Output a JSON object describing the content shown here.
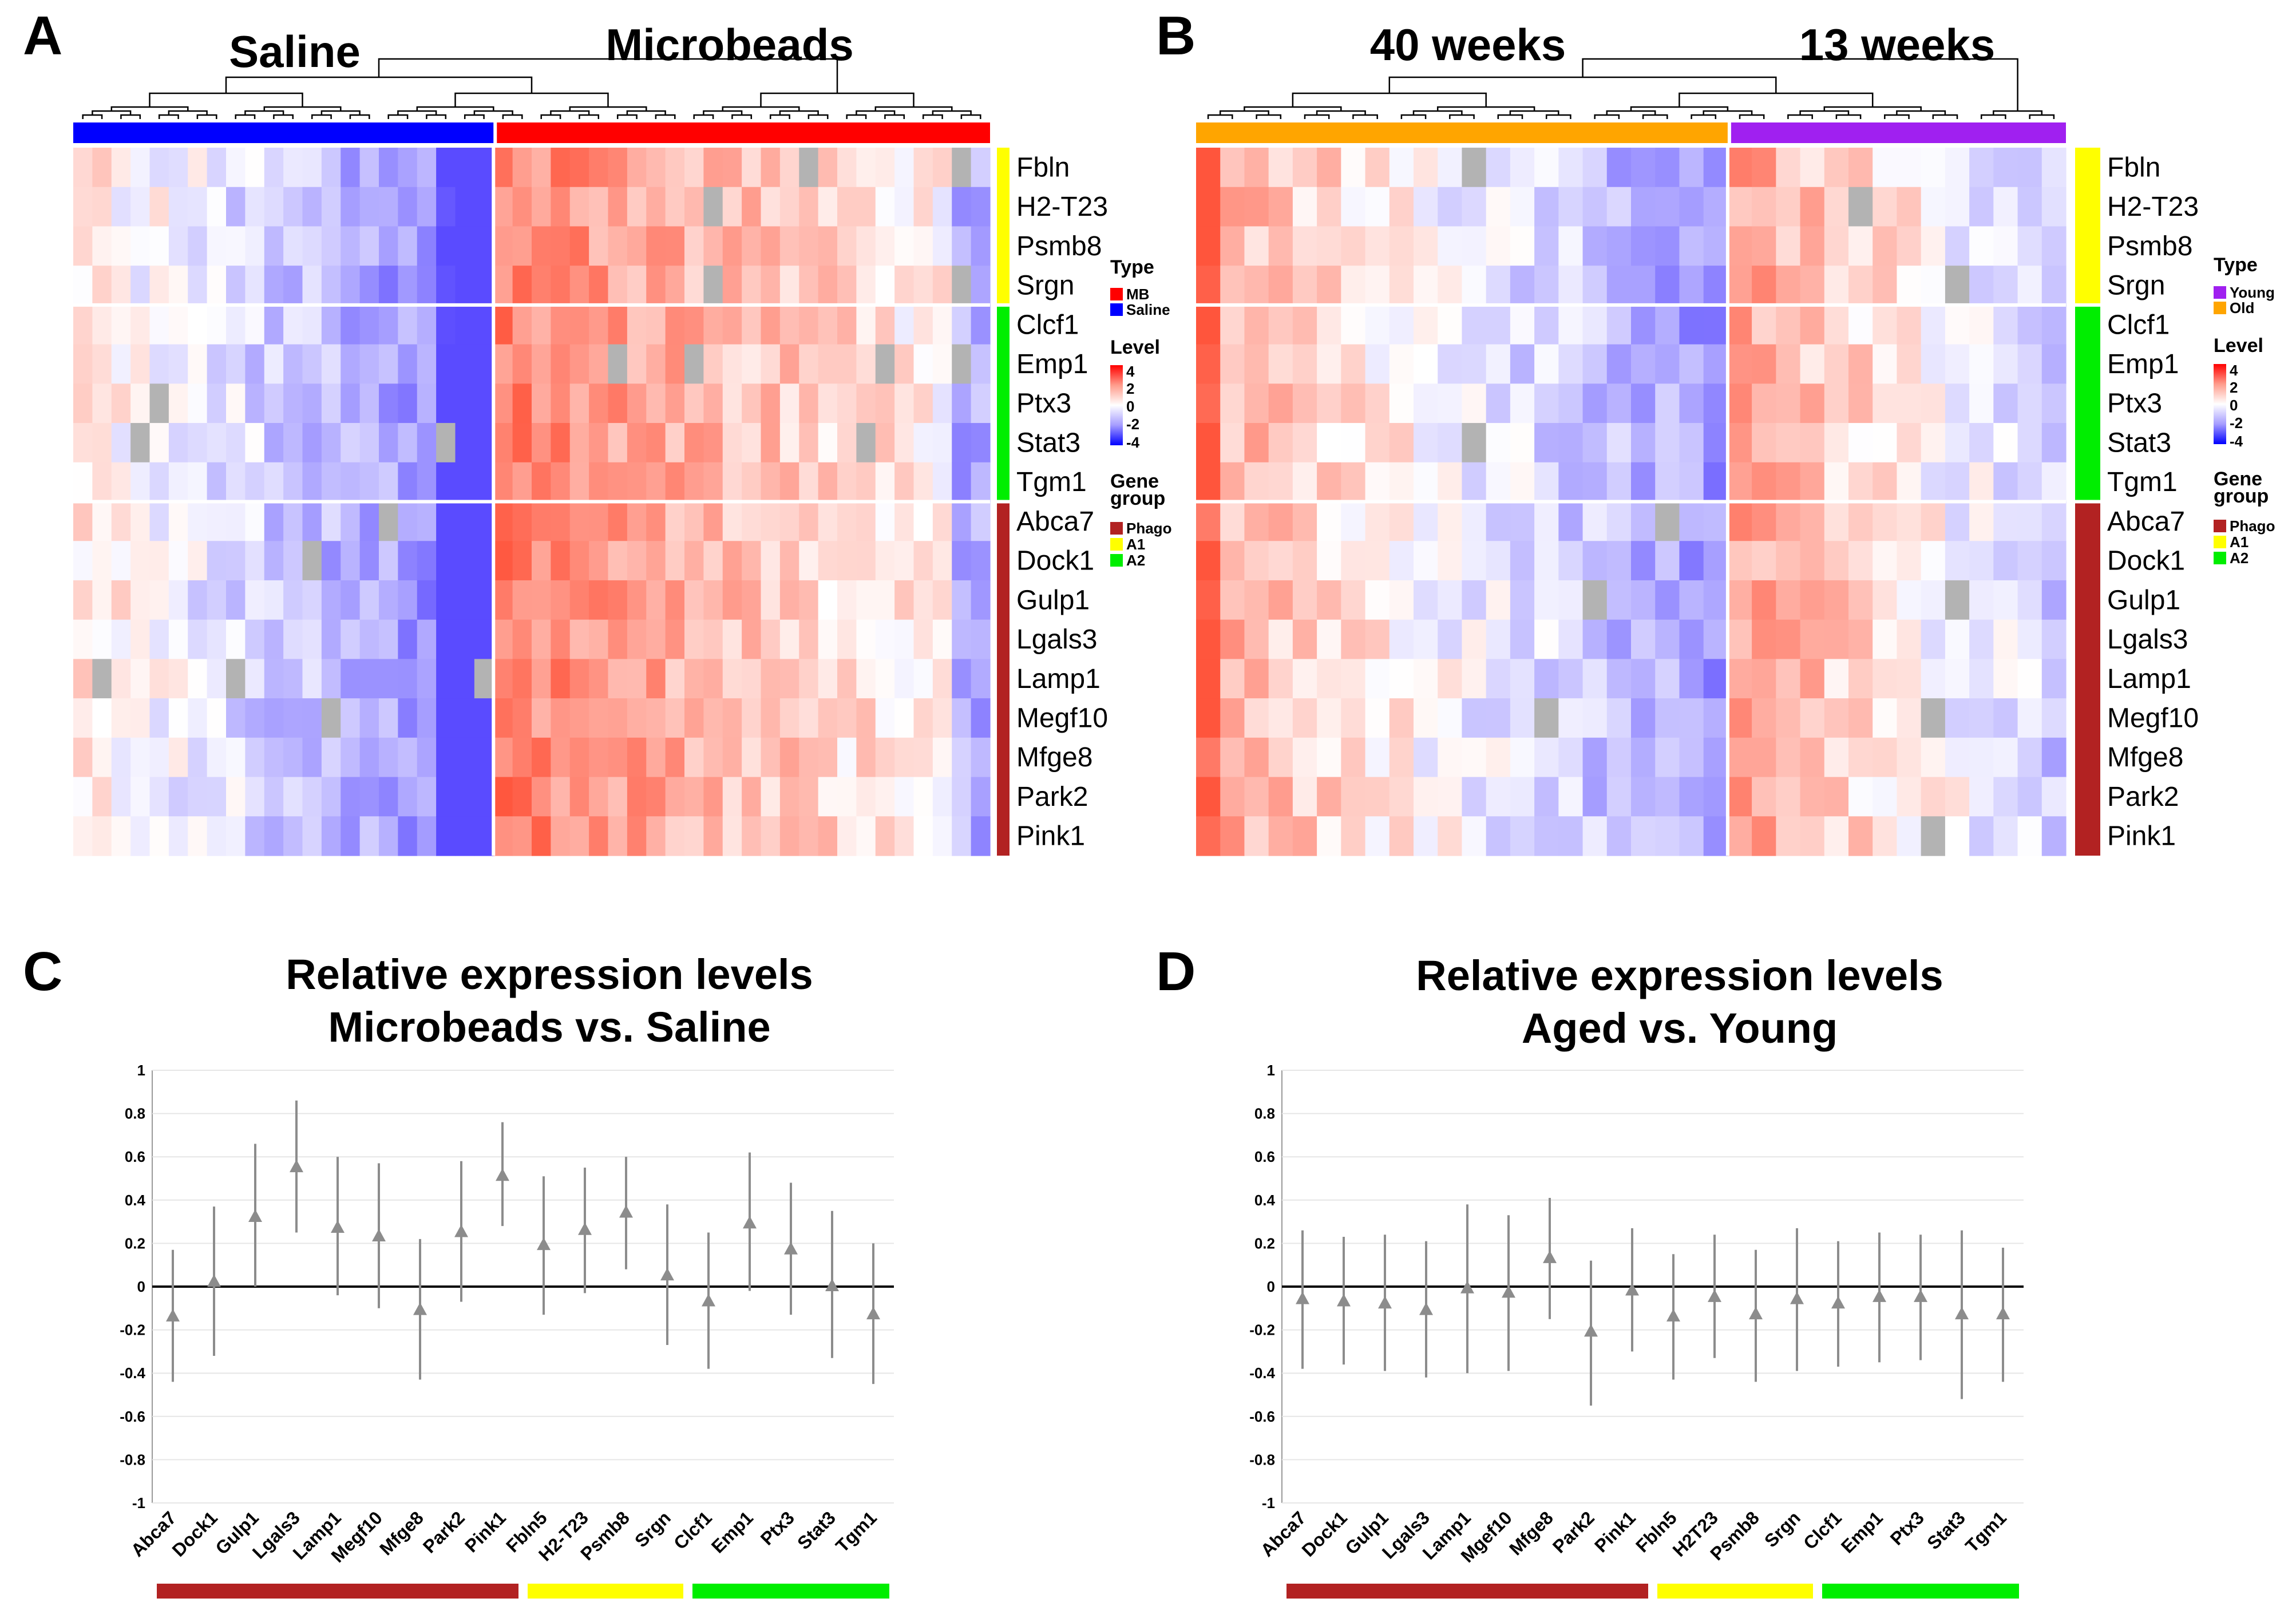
{
  "panels": {
    "a": {
      "label": "A",
      "group_left": "Saline",
      "group_right": "Microbeads"
    },
    "b": {
      "label": "B",
      "group_left": "40 weeks",
      "group_right": "13 weeks"
    },
    "c": {
      "label": "C"
    },
    "d": {
      "label": "D"
    }
  },
  "heatmap_genes": [
    "Fbln",
    "H2-T23",
    "Psmb8",
    "Srgn",
    "Clcf1",
    "Emp1",
    "Ptx3",
    "Stat3",
    "Tgm1",
    "Abca7",
    "Dock1",
    "Gulp1",
    "Lgals3",
    "Lamp1",
    "Megf10",
    "Mfge8",
    "Park2",
    "Pink1"
  ],
  "legend_a": {
    "type_title": "Type",
    "type_items": [
      {
        "label": "MB",
        "color": "#ff0000"
      },
      {
        "label": "Saline",
        "color": "#0000ff"
      }
    ],
    "level_title": "Level",
    "level_ticks": [
      "4",
      "2",
      "0",
      "-2",
      "-4"
    ],
    "gene_title_1": "Gene",
    "gene_title_2": "group",
    "gene_items": [
      {
        "label": "Phago",
        "color": "#b22222"
      },
      {
        "label": "A1",
        "color": "#ffff00"
      },
      {
        "label": "A2",
        "color": "#00ee00"
      }
    ]
  },
  "legend_b": {
    "type_title": "Type",
    "type_items": [
      {
        "label": "Young",
        "color": "#a020f0"
      },
      {
        "label": "Old",
        "color": "#ffa500"
      }
    ],
    "level_title": "Level",
    "level_ticks": [
      "4",
      "2",
      "0",
      "-2",
      "-4"
    ],
    "gene_title_1": "Gene",
    "gene_title_2": "group",
    "gene_items": [
      {
        "label": "Phago",
        "color": "#b22222"
      },
      {
        "label": "A1",
        "color": "#ffff00"
      },
      {
        "label": "A2",
        "color": "#00ee00"
      }
    ]
  },
  "colors": {
    "phago": "#b22222",
    "a1": "#ffff00",
    "a2": "#00ee00",
    "saline": "#0000ff",
    "mb": "#ff0000",
    "old": "#ffa500",
    "young": "#a020f0",
    "marker": "#8c8c8c"
  },
  "chart_data": [
    {
      "panel": "C",
      "type": "scatter",
      "title_line1": "Relative expression levels",
      "title_line2": "Microbeads vs. Saline",
      "ylim": [
        -1,
        1
      ],
      "yticks": [
        "1",
        "0.8",
        "0.6",
        "0.4",
        "0.2",
        "0",
        "-0.2",
        "-0.4",
        "-0.6",
        "-0.8",
        "-1"
      ],
      "categories": [
        "Abca7",
        "Dock1",
        "Gulp1",
        "Lgals3",
        "Lamp1",
        "Megf10",
        "Mfge8",
        "Park2",
        "Pink1",
        "Fbln5",
        "H2-T23",
        "Psmb8",
        "Srgn",
        "Clcf1",
        "Emp1",
        "Ptx3",
        "Stat3",
        "Tgm1"
      ],
      "values": [
        -0.14,
        0.02,
        0.32,
        0.55,
        0.27,
        0.23,
        -0.11,
        0.25,
        0.51,
        0.19,
        0.26,
        0.34,
        0.05,
        -0.07,
        0.29,
        0.17,
        0.0,
        -0.13
      ],
      "lower": [
        -0.44,
        -0.32,
        0.0,
        0.25,
        -0.04,
        -0.1,
        -0.43,
        -0.07,
        0.28,
        -0.13,
        -0.03,
        0.08,
        -0.27,
        -0.38,
        -0.02,
        -0.13,
        -0.33,
        -0.45
      ],
      "upper": [
        0.17,
        0.37,
        0.66,
        0.86,
        0.6,
        0.57,
        0.22,
        0.58,
        0.76,
        0.51,
        0.55,
        0.6,
        0.38,
        0.25,
        0.62,
        0.48,
        0.35,
        0.2
      ],
      "gene_groups": [
        {
          "name": "Phago",
          "count": 9
        },
        {
          "name": "A1",
          "count": 4
        },
        {
          "name": "A2",
          "count": 5
        }
      ]
    },
    {
      "panel": "D",
      "type": "scatter",
      "title_line1": "Relative expression levels",
      "title_line2": "Aged vs. Young",
      "ylim": [
        -1,
        1
      ],
      "yticks": [
        "1",
        "0.8",
        "0.6",
        "0.4",
        "0.2",
        "0",
        "-0.2",
        "-0.4",
        "-0.6",
        "-0.8",
        "-1"
      ],
      "categories": [
        "Abca7",
        "Dock1",
        "Gulp1",
        "Lgals3",
        "Lamp1",
        "Mgef10",
        "Mfge8",
        "Park2",
        "Pink1",
        "Fbln5",
        "H2T23",
        "Psmb8",
        "Srgn",
        "Clcf1",
        "Emp1",
        "Ptx3",
        "Stat3",
        "Tgm1"
      ],
      "values": [
        -0.06,
        -0.07,
        -0.08,
        -0.11,
        -0.01,
        -0.03,
        0.13,
        -0.21,
        -0.02,
        -0.14,
        -0.05,
        -0.13,
        -0.06,
        -0.08,
        -0.05,
        -0.05,
        -0.13,
        -0.13
      ],
      "lower": [
        -0.38,
        -0.36,
        -0.39,
        -0.42,
        -0.4,
        -0.39,
        -0.15,
        -0.55,
        -0.3,
        -0.43,
        -0.33,
        -0.44,
        -0.39,
        -0.37,
        -0.35,
        -0.34,
        -0.52,
        -0.44
      ],
      "upper": [
        0.26,
        0.23,
        0.24,
        0.21,
        0.38,
        0.33,
        0.41,
        0.12,
        0.27,
        0.15,
        0.24,
        0.17,
        0.27,
        0.21,
        0.25,
        0.24,
        0.26,
        0.18
      ],
      "gene_groups": [
        {
          "name": "Phago",
          "count": 9
        },
        {
          "name": "A1",
          "count": 4
        },
        {
          "name": "A2",
          "count": 5
        }
      ]
    }
  ]
}
